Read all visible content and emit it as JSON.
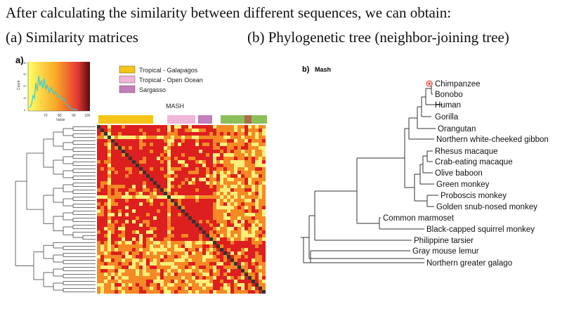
{
  "intro_text": "After calculating the similarity between different sequences, we can obtain:",
  "caption_a": "(a) Similarity matrices",
  "caption_b": "(b) Phylogenetic tree (neighbor-joining tree)",
  "panel_a": {
    "label": "a)",
    "title": "MASH",
    "histogram": {
      "x_ticks": [
        "70",
        "80",
        "90",
        "100"
      ],
      "x_label": "Value",
      "y_label": "Count",
      "y_ticks": [
        "0",
        "10",
        "20",
        "30",
        "40"
      ]
    },
    "legend": [
      {
        "label": "Tropical - Galapagos",
        "color": "#f5c518"
      },
      {
        "label": "Tropical - Open Ocean",
        "color": "#efb6d8"
      },
      {
        "label": "Sargasso",
        "color": "#c27fbb"
      }
    ],
    "colors": {
      "high": "#dd1f1f",
      "mid": "#f58a24",
      "low": "#ffef7a",
      "diag": "#333333",
      "green": "#8cbf5a",
      "brown": "#b06a4c"
    }
  },
  "panel_b": {
    "label": "b)",
    "title": "Mash",
    "taxa": [
      "Chimpanzee",
      "Bonobo",
      "Human",
      "Gorilla",
      "Orangutan",
      "Northern white-cheeked gibbon",
      "Rhesus macaque",
      "Crab-eating macaque",
      "Olive baboon",
      "Green monkey",
      "Proboscis monkey",
      "Golden snub-nosed monkey",
      "Common marmoset",
      "Black-capped squirrel monkey",
      "Philippine tarsier",
      "Gray mouse lemur",
      "Northern greater galago"
    ]
  }
}
